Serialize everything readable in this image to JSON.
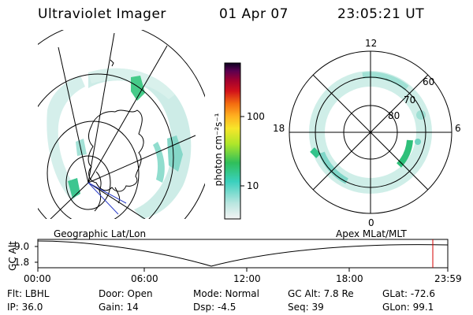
{
  "header": {
    "instrument": "Ultraviolet Imager",
    "date": "01 Apr 07",
    "time": "23:05:21 UT"
  },
  "colorbar": {
    "unit_label": "photon cm⁻²s⁻¹",
    "ticks": [
      "100",
      "10"
    ]
  },
  "polar_plot": {
    "mlt_labels": {
      "top": "12",
      "left": "18",
      "right": "6",
      "bottom": "0"
    },
    "lat_labels": [
      "60",
      "70",
      "80"
    ]
  },
  "timeline": {
    "left_title": "Geographic Lat/Lon",
    "right_title": "Apex  MLat/MLT",
    "axis_label": "GC Alt",
    "alt_max": "9.0",
    "alt_min": "1.8",
    "time_ticks": [
      "00:00",
      "06:00",
      "12:00",
      "18:00",
      "23:59"
    ],
    "current_marker_hour": 23.09,
    "marker_color": "#d40000"
  },
  "info": {
    "filter": "Flt: LBHL",
    "ip": "IP: 36.0",
    "door": "Door: Open",
    "gain": "Gain: 14",
    "mode": "Mode: Normal",
    "dsp": "Dsp:    -4.5",
    "gc_alt": "GC Alt: 7.8 Re",
    "seq": "Seq: 39",
    "glat": "GLat: -72.6",
    "glon": "GLon:  99.1"
  },
  "colors": {
    "aurora_light": "#c8ebe4",
    "aurora_mid": "#7ed6c8",
    "aurora_strong": "#31c68f",
    "coast": "#000000"
  }
}
